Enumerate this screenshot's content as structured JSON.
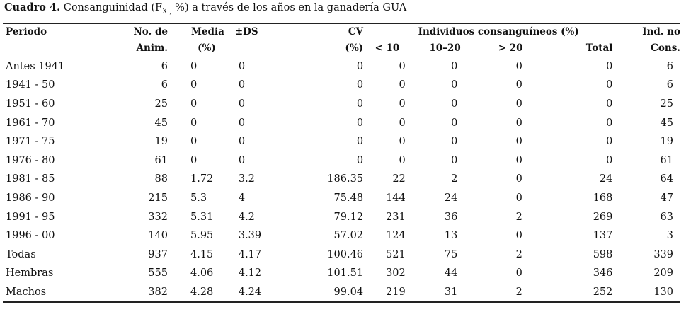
{
  "caption": {
    "label": "Cuadro 4.",
    "text_before": " Consanguinidad (F",
    "sub": "X ,",
    "text_after": " %) a través de los años en la ganadería GUA"
  },
  "headers": {
    "periodo": "Periodo",
    "anim_1": "No. de",
    "anim_2": "Anim.",
    "media_1": "Media",
    "media_2": "(%)",
    "ds": "±DS",
    "cv_1": "CV",
    "cv_2": "(%)",
    "group": "Individuos consanguíneos (%)",
    "lt10": "< 10",
    "r1020": "10–20",
    "gt20": "> 20",
    "total": "Total",
    "nocons_1": "Ind. no",
    "nocons_2": "Cons."
  },
  "rows": [
    {
      "periodo": "Antes 1941",
      "anim": "6",
      "media": "0",
      "ds": "0",
      "cv": "0",
      "lt10": "0",
      "r1020": "0",
      "gt20": "0",
      "total": "0",
      "nocons": "6"
    },
    {
      "periodo": "1941 - 50",
      "anim": "6",
      "media": "0",
      "ds": "0",
      "cv": "0",
      "lt10": "0",
      "r1020": "0",
      "gt20": "0",
      "total": "0",
      "nocons": "6"
    },
    {
      "periodo": "1951 - 60",
      "anim": "25",
      "media": "0",
      "ds": "0",
      "cv": "0",
      "lt10": "0",
      "r1020": "0",
      "gt20": "0",
      "total": "0",
      "nocons": "25"
    },
    {
      "periodo": "1961 - 70",
      "anim": "45",
      "media": "0",
      "ds": "0",
      "cv": "0",
      "lt10": "0",
      "r1020": "0",
      "gt20": "0",
      "total": "0",
      "nocons": "45"
    },
    {
      "periodo": "1971 - 75",
      "anim": "19",
      "media": "0",
      "ds": "0",
      "cv": "0",
      "lt10": "0",
      "r1020": "0",
      "gt20": "0",
      "total": "0",
      "nocons": "19"
    },
    {
      "periodo": "1976 - 80",
      "anim": "61",
      "media": "0",
      "ds": "0",
      "cv": "0",
      "lt10": "0",
      "r1020": "0",
      "gt20": "0",
      "total": "0",
      "nocons": "61"
    },
    {
      "periodo": "1981 - 85",
      "anim": "88",
      "media": "1.72",
      "ds": "3.2",
      "cv": "186.35",
      "lt10": "22",
      "r1020": "2",
      "gt20": "0",
      "total": "24",
      "nocons": "64"
    },
    {
      "periodo": "1986 - 90",
      "anim": "215",
      "media": "5.3",
      "ds": "4",
      "cv": "75.48",
      "lt10": "144",
      "r1020": "24",
      "gt20": "0",
      "total": "168",
      "nocons": "47"
    },
    {
      "periodo": "1991 - 95",
      "anim": "332",
      "media": "5.31",
      "ds": "4.2",
      "cv": "79.12",
      "lt10": "231",
      "r1020": "36",
      "gt20": "2",
      "total": "269",
      "nocons": "63"
    },
    {
      "periodo": "1996 - 00",
      "anim": "140",
      "media": "5.95",
      "ds": "3.39",
      "cv": "57.02",
      "lt10": "124",
      "r1020": "13",
      "gt20": "0",
      "total": "137",
      "nocons": "3"
    },
    {
      "periodo": "Todas",
      "anim": "937",
      "media": "4.15",
      "ds": "4.17",
      "cv": "100.46",
      "lt10": "521",
      "r1020": "75",
      "gt20": "2",
      "total": "598",
      "nocons": "339"
    },
    {
      "periodo": "Hembras",
      "anim": "555",
      "media": "4.06",
      "ds": "4.12",
      "cv": "101.51",
      "lt10": "302",
      "r1020": "44",
      "gt20": "0",
      "total": "346",
      "nocons": "209"
    },
    {
      "periodo": "Machos",
      "anim": "382",
      "media": "4.28",
      "ds": "4.24",
      "cv": "99.04",
      "lt10": "219",
      "r1020": "31",
      "gt20": "2",
      "total": "252",
      "nocons": "130"
    }
  ]
}
